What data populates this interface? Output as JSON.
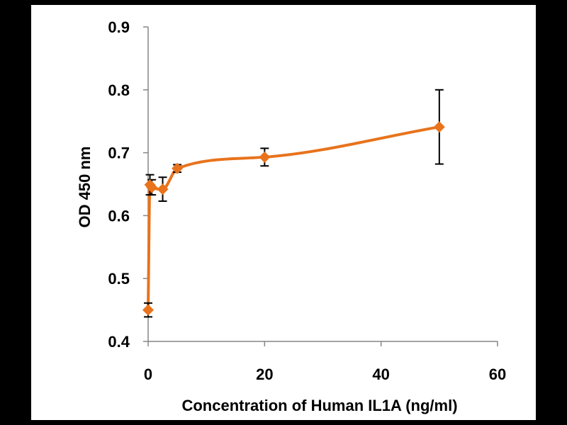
{
  "chart_data": {
    "type": "line",
    "title": "",
    "xlabel": "Concentration of Human IL1A (ng/ml)",
    "ylabel": "OD 450 nm",
    "xlim": [
      0,
      60
    ],
    "ylim": [
      0.4,
      0.9
    ],
    "xticks": [
      0,
      20,
      40,
      60
    ],
    "xtick_labels": [
      "0",
      "20",
      "40",
      "60"
    ],
    "yticks": [
      0.4,
      0.5,
      0.6,
      0.7,
      0.8,
      0.9
    ],
    "ytick_labels": [
      "0.4",
      "0.5",
      "0.6",
      "0.7",
      "0.8",
      "0.9"
    ],
    "grid": false,
    "legend": null,
    "series": [
      {
        "name": "Human IL1A",
        "color": "#e8731c",
        "marker": "diamond",
        "smooth": true,
        "points": [
          {
            "x": 0,
            "y": 0.45,
            "err": 0.011
          },
          {
            "x": 0.31,
            "y": 0.649,
            "err": 0.016
          },
          {
            "x": 0.63,
            "y": 0.645,
            "err": 0.012
          },
          {
            "x": 2.5,
            "y": 0.642,
            "err": 0.019
          },
          {
            "x": 5,
            "y": 0.675,
            "err": 0.006
          },
          {
            "x": 20,
            "y": 0.693,
            "err": 0.014
          },
          {
            "x": 50,
            "y": 0.741,
            "err": 0.059
          }
        ]
      }
    ]
  }
}
